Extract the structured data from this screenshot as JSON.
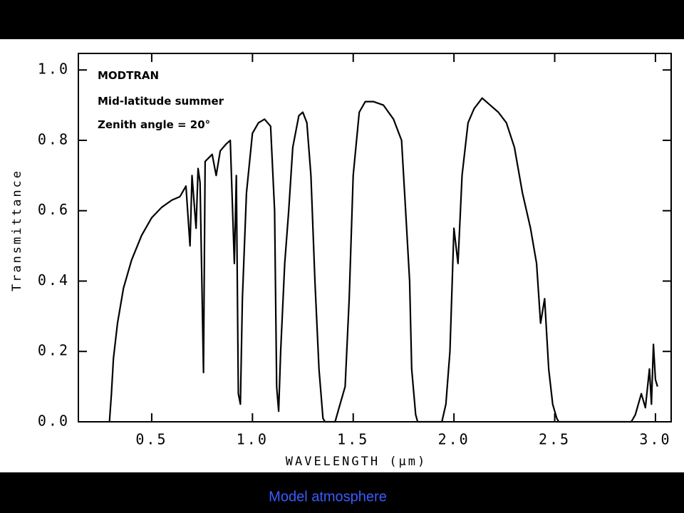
{
  "chart_data": {
    "type": "line",
    "annotations": [
      "MODTRAN",
      "Mid-latitude summer",
      "Zenith angle = 20°"
    ],
    "x_label": "WAVELENGTH (μm)",
    "y_label": "Transmittance",
    "caption": "Model atmosphere",
    "xlim": [
      0.136,
      3.078
    ],
    "ylim": [
      0,
      1.047
    ],
    "xticks": [
      0.5,
      {
        "value": 1,
        "label": "1.0"
      },
      1.5,
      {
        "value": 2,
        "label": "2.0"
      },
      2.5,
      {
        "value": 3,
        "label": "3.0"
      }
    ],
    "yticks": [
      {
        "value": 0,
        "label": "0.0"
      },
      0.2,
      0.4,
      0.6,
      0.8,
      {
        "value": 1,
        "label": "1.0"
      }
    ],
    "series": [
      {
        "name": "Transmittance",
        "color": "#000000",
        "x": [
          0.29,
          0.3,
          0.31,
          0.33,
          0.36,
          0.4,
          0.45,
          0.5,
          0.55,
          0.6,
          0.64,
          0.67,
          0.69,
          0.7,
          0.72,
          0.73,
          0.74,
          0.757,
          0.765,
          0.8,
          0.82,
          0.84,
          0.87,
          0.89,
          0.91,
          0.92,
          0.93,
          0.94,
          0.95,
          0.97,
          1.0,
          1.03,
          1.06,
          1.09,
          1.11,
          1.12,
          1.13,
          1.14,
          1.16,
          1.18,
          1.2,
          1.23,
          1.25,
          1.27,
          1.29,
          1.31,
          1.33,
          1.35,
          1.36,
          1.41,
          1.43,
          1.46,
          1.48,
          1.5,
          1.53,
          1.56,
          1.6,
          1.65,
          1.7,
          1.74,
          1.76,
          1.78,
          1.79,
          1.81,
          1.82,
          1.94,
          1.96,
          1.98,
          2.0,
          2.02,
          2.04,
          2.07,
          2.1,
          2.14,
          2.18,
          2.22,
          2.26,
          2.3,
          2.34,
          2.38,
          2.41,
          2.43,
          2.45,
          2.47,
          2.49,
          2.51,
          2.52,
          2.88,
          2.9,
          2.93,
          2.95,
          2.97,
          2.98,
          2.99,
          3.0,
          3.01
        ],
        "values": [
          0,
          0.08,
          0.18,
          0.28,
          0.38,
          0.46,
          0.53,
          0.58,
          0.61,
          0.63,
          0.64,
          0.67,
          0.5,
          0.7,
          0.55,
          0.72,
          0.68,
          0.14,
          0.74,
          0.76,
          0.7,
          0.77,
          0.79,
          0.8,
          0.45,
          0.7,
          0.08,
          0.05,
          0.35,
          0.65,
          0.82,
          0.85,
          0.86,
          0.84,
          0.6,
          0.1,
          0.03,
          0.2,
          0.45,
          0.6,
          0.78,
          0.87,
          0.88,
          0.85,
          0.7,
          0.4,
          0.15,
          0.01,
          0,
          0,
          0.04,
          0.1,
          0.35,
          0.7,
          0.88,
          0.91,
          0.91,
          0.9,
          0.86,
          0.8,
          0.6,
          0.4,
          0.15,
          0.02,
          0,
          0,
          0.05,
          0.2,
          0.55,
          0.45,
          0.7,
          0.85,
          0.89,
          0.92,
          0.9,
          0.88,
          0.85,
          0.78,
          0.65,
          0.55,
          0.45,
          0.28,
          0.35,
          0.15,
          0.05,
          0.01,
          0,
          0,
          0.02,
          0.08,
          0.04,
          0.15,
          0.05,
          0.22,
          0.12,
          0.1
        ]
      }
    ]
  }
}
